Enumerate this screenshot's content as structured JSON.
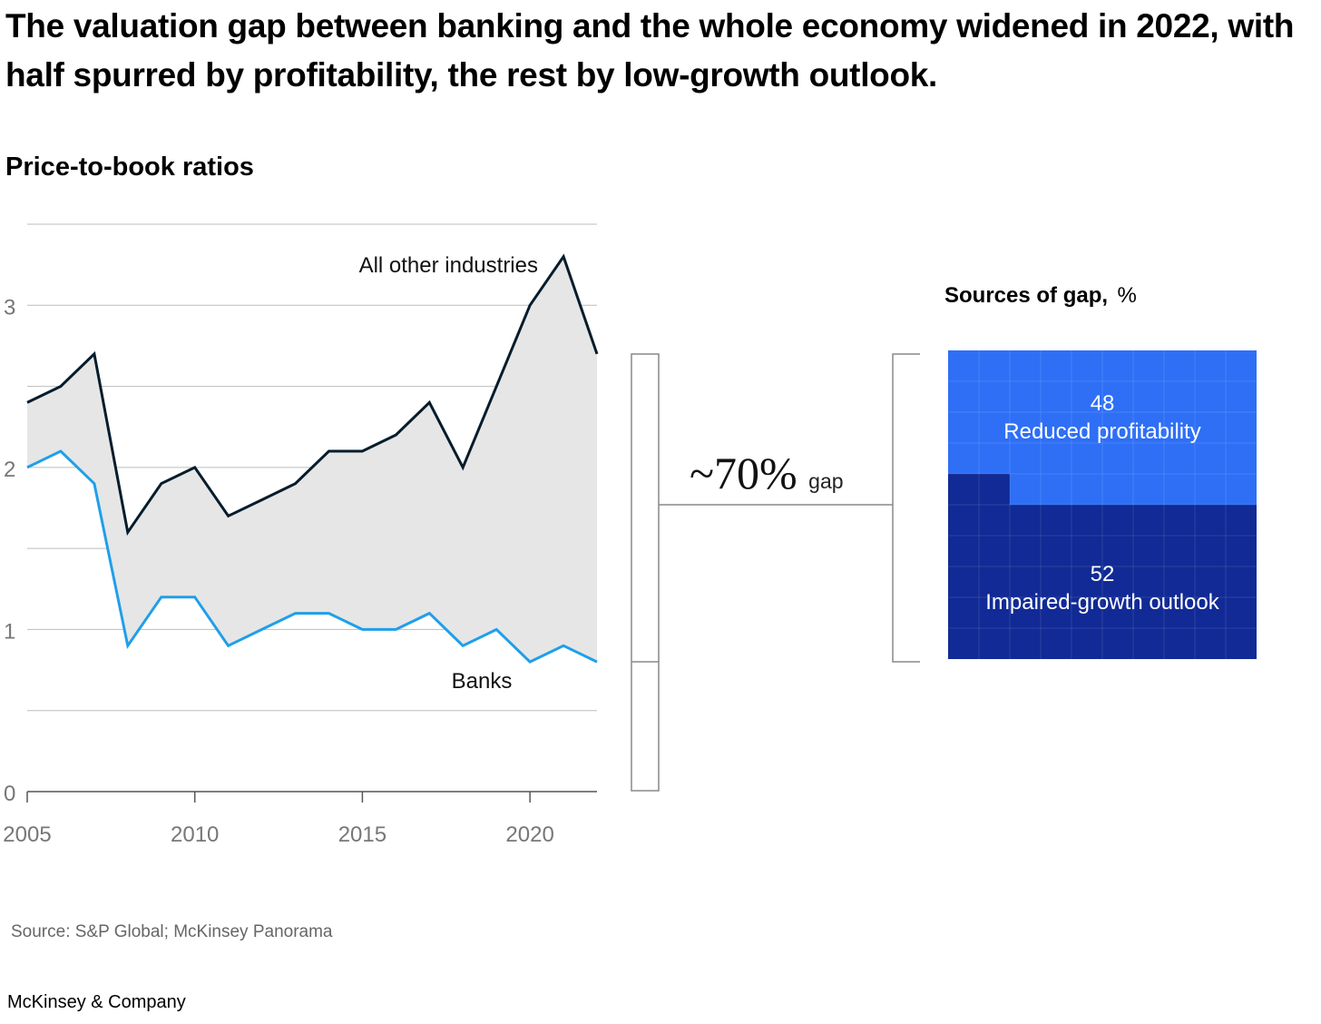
{
  "title": "The valuation gap between banking and the whole economy widened in 2022, with half spurred by profitability, the rest by low-growth outlook.",
  "subtitle": "Price-to-book ratios",
  "source": "Source: S&P Global; McKinsey Panorama",
  "brand": "McKinsey & Company",
  "colors": {
    "other_industries": "#051C2C",
    "banks": "#1F9FEA",
    "gap_fill": "#E6E6E6",
    "reduced_profitability": "#2E6FF6",
    "impaired_growth": "#112A95"
  },
  "chart_data": [
    {
      "type": "line",
      "x": [
        2005,
        2006,
        2007,
        2008,
        2009,
        2010,
        2011,
        2012,
        2013,
        2014,
        2015,
        2016,
        2017,
        2018,
        2019,
        2020,
        2021,
        2022
      ],
      "series": [
        {
          "name": "All other industries",
          "values": [
            2.4,
            2.5,
            2.7,
            1.6,
            1.9,
            2.0,
            1.7,
            1.8,
            1.9,
            2.1,
            2.1,
            2.2,
            2.4,
            2.0,
            2.5,
            3.0,
            3.3,
            2.7
          ]
        },
        {
          "name": "Banks",
          "values": [
            2.0,
            2.1,
            1.9,
            0.9,
            1.2,
            1.2,
            0.9,
            1.0,
            1.1,
            1.1,
            1.0,
            1.0,
            1.1,
            0.9,
            1.0,
            0.8,
            0.9,
            0.8
          ]
        }
      ],
      "xticks": [
        "2005",
        "2010",
        "2015",
        "2020"
      ],
      "yticks": [
        "0",
        "1",
        "2",
        "3"
      ],
      "xlim": [
        2005,
        2022
      ],
      "ylim": [
        0,
        3.5
      ],
      "grid": true,
      "annotation": {
        "big": "~70%",
        "small": "gap"
      }
    },
    {
      "type": "area",
      "title_bold": "Sources of gap,",
      "title_unit": "%",
      "segments": [
        {
          "name": "Reduced profitability",
          "value": 48,
          "value_label": "48"
        },
        {
          "name": "Impaired-growth outlook",
          "value": 52,
          "value_label": "52"
        }
      ]
    }
  ]
}
